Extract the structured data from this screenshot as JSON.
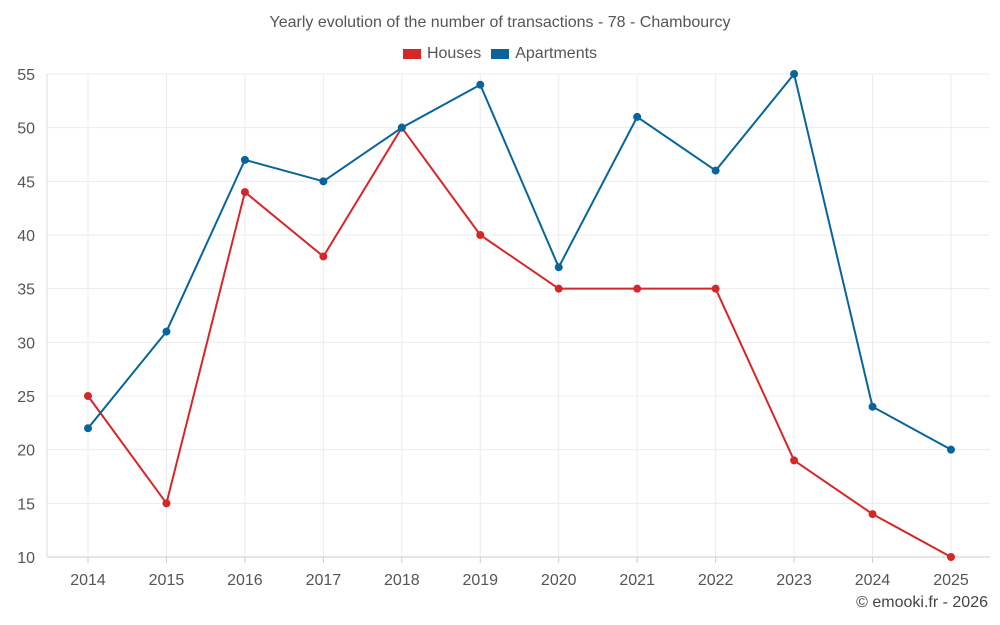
{
  "chart_data": {
    "type": "line",
    "title": "Yearly evolution of the number of transactions - 78 - Chambourcy",
    "categories": [
      "2014",
      "2015",
      "2016",
      "2017",
      "2018",
      "2019",
      "2020",
      "2021",
      "2022",
      "2023",
      "2024",
      "2025"
    ],
    "series": [
      {
        "name": "Houses",
        "color": "#d62728",
        "values": [
          25,
          15,
          44,
          38,
          50,
          40,
          35,
          35,
          35,
          19,
          14,
          10
        ]
      },
      {
        "name": "Apartments",
        "color": "#08649b",
        "values": [
          22,
          31,
          47,
          45,
          50,
          54,
          37,
          51,
          46,
          55,
          24,
          20
        ]
      }
    ],
    "ylim": [
      10,
      55
    ],
    "yticks": [
      10,
      15,
      20,
      25,
      30,
      35,
      40,
      45,
      50,
      55
    ],
    "grid": true,
    "legend": "top-center"
  },
  "credit": "© emooki.fr - 2026"
}
